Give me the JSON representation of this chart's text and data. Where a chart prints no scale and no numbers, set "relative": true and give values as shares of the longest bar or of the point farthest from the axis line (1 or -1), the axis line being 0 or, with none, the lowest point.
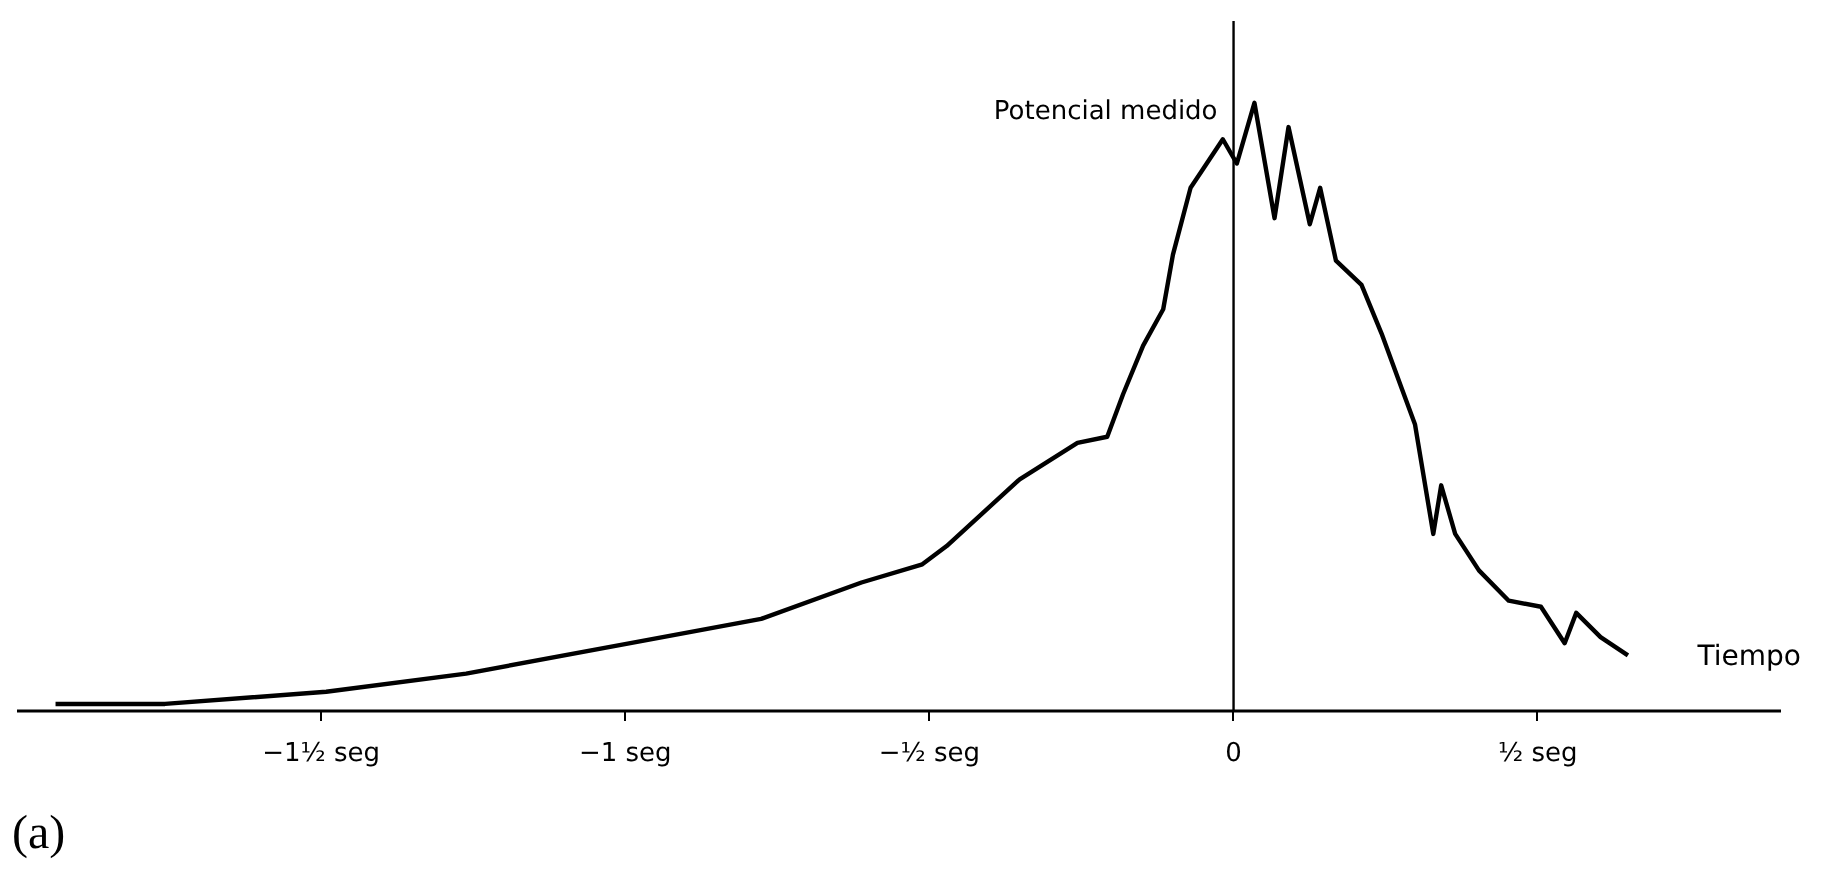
{
  "chart_data": {
    "type": "line",
    "relative": true,
    "xlabel": "Tiempo",
    "ylabel": "Potencial medido",
    "annotations": [
      "(a)"
    ],
    "xlim": [
      -2,
      0.9
    ],
    "xticks": [
      {
        "value": -1.5,
        "label": "−1½ seg"
      },
      {
        "value": -1,
        "label": "−1 seg"
      },
      {
        "value": -0.5,
        "label": "−½ seg"
      },
      0,
      {
        "value": 0.5,
        "label": "½ seg"
      }
    ],
    "marker": "none",
    "line_style": "solid",
    "series": [
      {
        "color": "#000000",
        "x": [
          -1.935,
          -1.755,
          -1.49,
          -1.26,
          -0.99,
          -0.775,
          -0.61,
          -0.51,
          -0.47,
          -0.35,
          -0.255,
          -0.206,
          -0.18,
          -0.147,
          -0.114,
          -0.098,
          -0.069,
          -0.049,
          -0.016,
          0.007,
          0.036,
          0.069,
          0.092,
          0.127,
          0.144,
          0.17,
          0.212,
          0.245,
          0.278,
          0.3,
          0.33,
          0.343,
          0.366,
          0.405,
          0.454,
          0.507,
          0.546,
          0.565,
          0.605,
          0.65
        ],
        "values": [
          0.01,
          0.01,
          0.03,
          0.06,
          0.11,
          0.15,
          0.21,
          0.24,
          0.27,
          0.38,
          0.44,
          0.45,
          0.52,
          0.6,
          0.66,
          0.75,
          0.86,
          0.89,
          0.94,
          0.9,
          1.0,
          0.81,
          0.96,
          0.8,
          0.86,
          0.74,
          0.7,
          0.62,
          0.53,
          0.47,
          0.29,
          0.37,
          0.29,
          0.23,
          0.18,
          0.17,
          0.11,
          0.16,
          0.12,
          0.09
        ]
      }
    ]
  }
}
